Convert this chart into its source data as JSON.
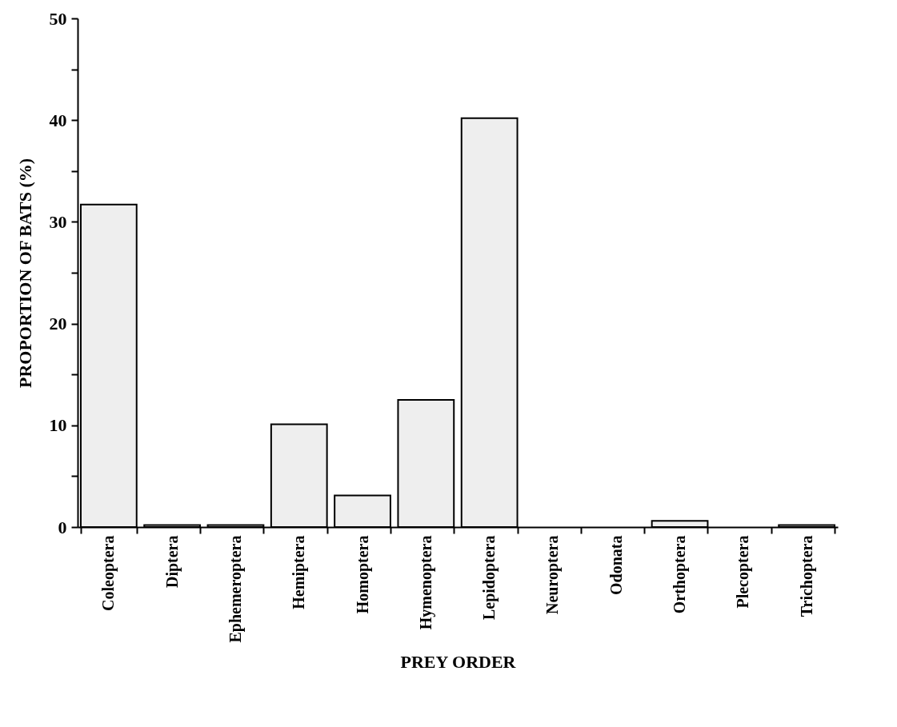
{
  "chart_data": {
    "type": "bar",
    "xlabel": "PREY ORDER",
    "ylabel": "PROPORTION OF BATS (%)",
    "categories": [
      "Coleoptera",
      "Diptera",
      "Ephemeroptera",
      "Hemiptera",
      "Homoptera",
      "Hymenoptera",
      "Lepidoptera",
      "Neuroptera",
      "Odonata",
      "Orthoptera",
      "Plecoptera",
      "Trichoptera"
    ],
    "values": [
      31.7,
      0.2,
      0.2,
      10.1,
      3.1,
      12.5,
      40.2,
      0,
      0,
      0.6,
      0,
      0.2
    ],
    "color": "#eeeeee",
    "ylim": [
      0,
      50
    ],
    "yticks": [
      0,
      {
        "value": 5,
        "label": null
      },
      10,
      {
        "value": 15,
        "label": null
      },
      20,
      {
        "value": 25,
        "label": null
      },
      30,
      {
        "value": 35,
        "label": null
      },
      40,
      {
        "value": 45,
        "label": null
      },
      50
    ],
    "grid": false
  }
}
